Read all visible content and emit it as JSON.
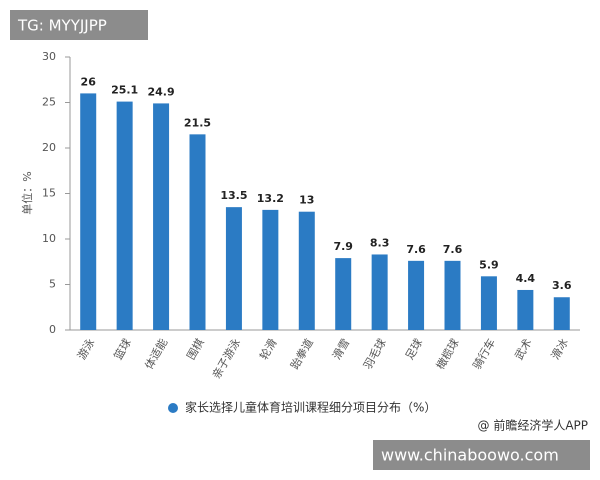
{
  "chart_data": {
    "type": "bar",
    "y_label": "单位：%",
    "categories": [
      "游泳",
      "篮球",
      "体适能",
      "围棋",
      "亲子游泳",
      "轮滑",
      "跆拳道",
      "滑雪",
      "羽毛球",
      "足球",
      "橄榄球",
      "骑行车",
      "武术",
      "滑冰"
    ],
    "series": [
      {
        "name": "家长选择儿童体育培训课程细分项目分布（%）",
        "color": "#2b7bc4",
        "values": [
          26,
          25.1,
          24.9,
          21.5,
          13.5,
          13.2,
          13,
          7.9,
          8.3,
          7.6,
          7.6,
          5.9,
          4.4,
          3.6
        ]
      }
    ],
    "ylim": [
      0,
      30
    ],
    "yticks": [
      0,
      5,
      10,
      15,
      20,
      25,
      30
    ],
    "grid": false,
    "legend": "bottom"
  },
  "watermarks": {
    "top_left": "TG: MYYJJPP",
    "source": "@ 前瞻经济学人APP",
    "site": "www.chinaboowo.com"
  }
}
